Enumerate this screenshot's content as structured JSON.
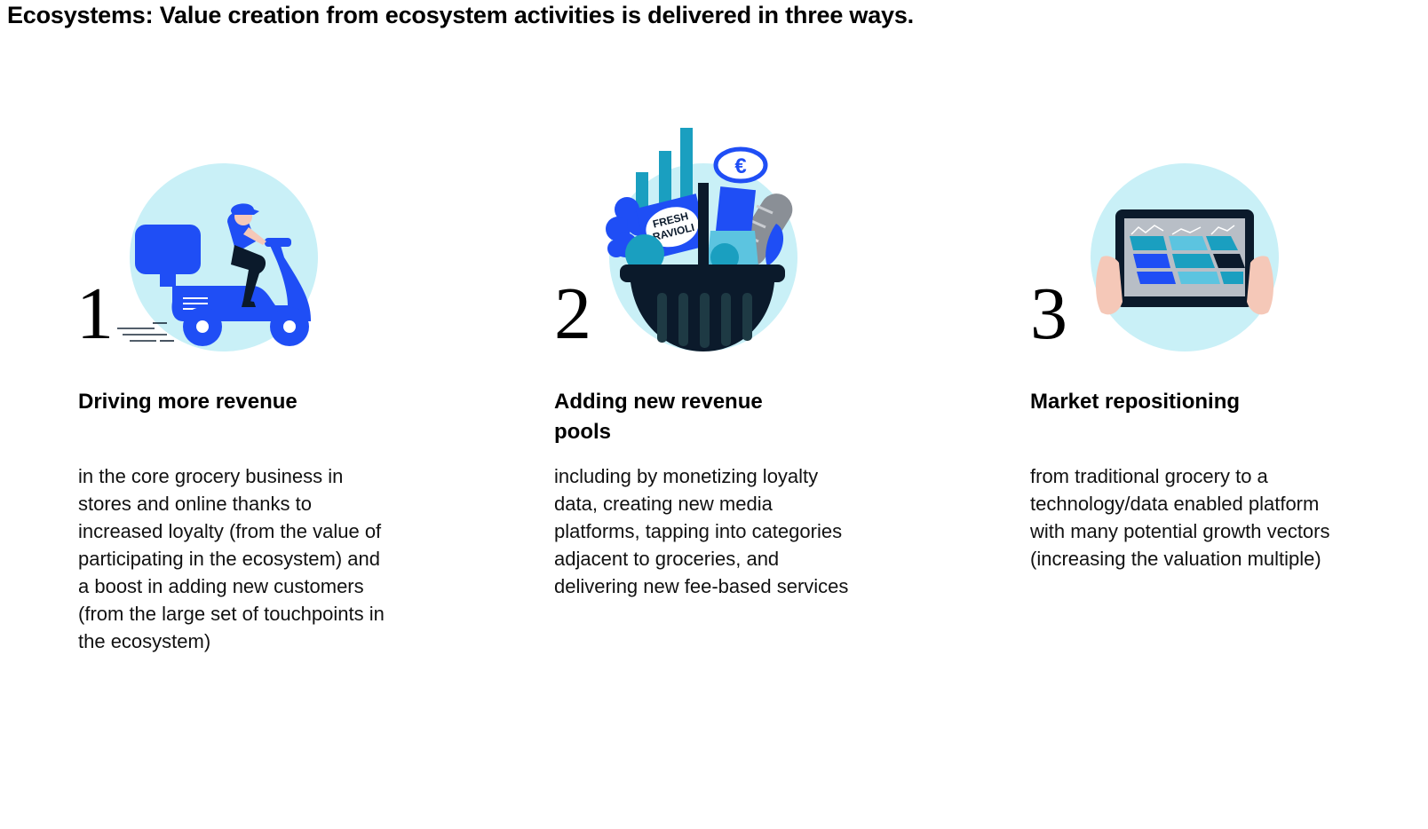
{
  "title": "Ecosystems: Value creation from ecosystem activities is delivered in three ways.",
  "colors": {
    "circle": "#c9f0f7",
    "accent_blue": "#1f4ef5",
    "teal": "#1a9fc0",
    "dark_navy": "#0b1a2b",
    "skin": "#f5c8b8"
  },
  "steps": [
    {
      "number": "1",
      "icon": "scooter-delivery-icon",
      "heading": "Driving more revenue",
      "body": "in the core grocery business in stores and online thanks to increased loyalty (from the value of participating in the ecosystem) and a boost in adding new customers (from the large set of touchpoints in the ecosystem)"
    },
    {
      "number": "2",
      "icon": "grocery-basket-icon",
      "heading": "Adding new revenue pools",
      "body": "including by monetizing loyalty data, creating new media platforms, tapping into categories adjacent to groceries, and delivering new fee-based services",
      "basket_labels": {
        "package": "FRESH RAVIOLI",
        "currency": "€"
      }
    },
    {
      "number": "3",
      "icon": "tablet-data-icon",
      "heading": "Market repositioning",
      "body": "from traditional grocery to a technology/data enabled platform with many potential growth vectors (increasing the valuation multiple)"
    }
  ]
}
